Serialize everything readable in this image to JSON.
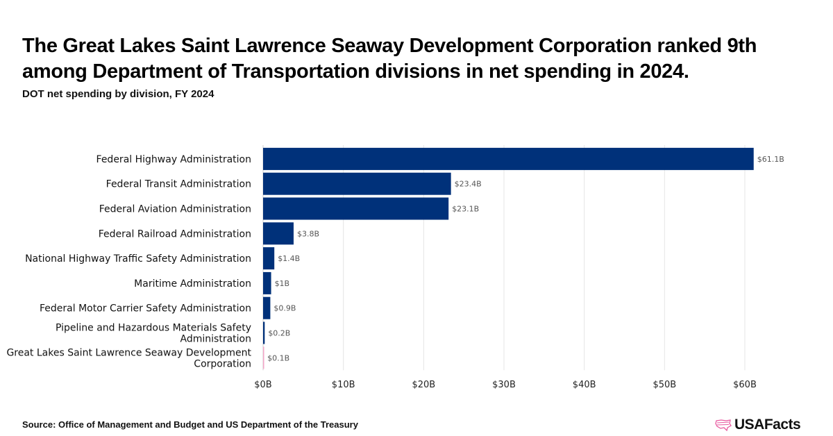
{
  "title": "The Great Lakes Saint Lawrence Seaway Development Corporation ranked 9th among Department of Transportation divisions in net spending in 2024.",
  "subtitle": "DOT net spending by division, FY 2024",
  "source": "Source: Office of Management and Budget and US Department of the Treasury",
  "logo_text": "USAFacts",
  "colors": {
    "bar": "#00317a",
    "highlight": "#f4a6c8",
    "grid": "#e5e5e5",
    "label": "#555555"
  },
  "chart_data": {
    "type": "bar",
    "orientation": "horizontal",
    "categories": [
      "Federal Highway Administration",
      "Federal Transit Administration",
      "Federal Aviation Administration",
      "Federal Railroad Administration",
      "National Highway Traffic Safety Administration",
      "Maritime Administration",
      "Federal Motor Carrier Safety Administration",
      "Pipeline and Hazardous Materials Safety Administration",
      "Great Lakes Saint Lawrence Seaway Development Corporation"
    ],
    "values": [
      61.1,
      23.4,
      23.1,
      3.8,
      1.4,
      1,
      0.9,
      0.2,
      0.1
    ],
    "data_labels": [
      "$61.1B",
      "$23.4B",
      "$23.1B",
      "$3.8B",
      "$1.4B",
      "$1B",
      "$0.9B",
      "$0.2B",
      "$0.1B"
    ],
    "highlight_index": 8,
    "x_ticks": [
      0,
      10,
      20,
      30,
      40,
      50,
      60
    ],
    "x_tick_labels": [
      "$0B",
      "$10B",
      "$20B",
      "$30B",
      "$40B",
      "$50B",
      "$60B"
    ],
    "xlim": [
      0,
      61.1
    ],
    "grid": "vertical",
    "xlabel": "",
    "ylabel": ""
  }
}
